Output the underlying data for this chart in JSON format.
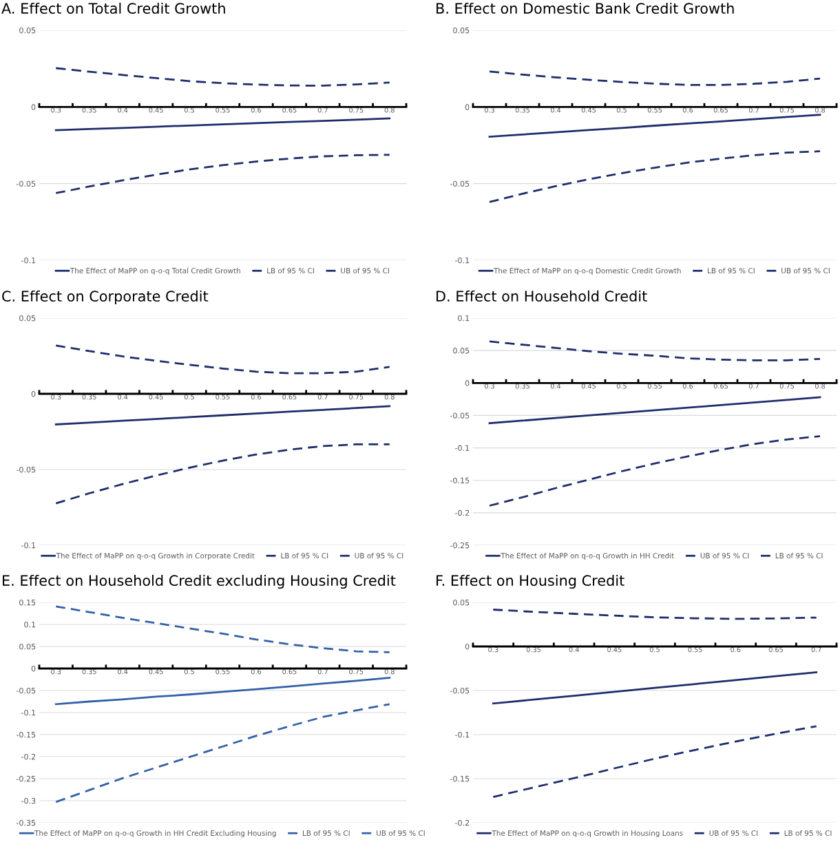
{
  "chart_data": [
    {
      "type": "line",
      "title": "A. Effect on Total Credit Growth",
      "categories": [
        "0.3",
        "0.35",
        "0.4",
        "0.45",
        "0.5",
        "0.55",
        "0.6",
        "0.65",
        "0.7",
        "0.75",
        "0.8"
      ],
      "ylim": [
        -0.1,
        0.05
      ],
      "yticks": [
        -0.1,
        -0.05,
        0,
        0.05
      ],
      "grid": "y",
      "legend": "bottom",
      "series": [
        {
          "name": "The Effect of MaPP on q-o-q Total Credit Growth",
          "color": "#1f2d6b",
          "line_style": "solid",
          "values": [
            -0.0152,
            -0.0144,
            -0.0137,
            -0.0129,
            -0.0121,
            -0.0114,
            -0.0106,
            -0.0098,
            -0.0091,
            -0.0083,
            -0.0075
          ]
        },
        {
          "name": "LB of 95 % CI",
          "color": "#1f2d6b",
          "line_style": "dashed",
          "values": [
            -0.0562,
            -0.0519,
            -0.0479,
            -0.0442,
            -0.0408,
            -0.038,
            -0.0356,
            -0.0337,
            -0.0322,
            -0.0315,
            -0.0312
          ]
        },
        {
          "name": "UB of 95 % CI",
          "color": "#1f2d6b",
          "line_style": "dashed",
          "values": [
            0.0253,
            0.023,
            0.0209,
            0.0188,
            0.0168,
            0.0155,
            0.0146,
            0.014,
            0.0139,
            0.0147,
            0.0159
          ]
        }
      ]
    },
    {
      "type": "line",
      "title": "B. Effect on Domestic Bank Credit Growth",
      "categories": [
        "0.3",
        "0.35",
        "0.4",
        "0.45",
        "0.5",
        "0.55",
        "0.6",
        "0.65",
        "0.7",
        "0.75",
        "0.8"
      ],
      "ylim": [
        -0.1,
        0.05
      ],
      "yticks": [
        -0.1,
        -0.05,
        0,
        0.05
      ],
      "grid": "y",
      "legend": "bottom",
      "series": [
        {
          "name": "The Effect of MaPP on q-o-q Domestic Credit Growth",
          "color": "#1f2d6b",
          "line_style": "solid",
          "values": [
            -0.0194,
            -0.018,
            -0.0165,
            -0.0151,
            -0.0137,
            -0.0122,
            -0.0108,
            -0.0094,
            -0.008,
            -0.0065,
            -0.0051
          ]
        },
        {
          "name": "LB of 95 % CI",
          "color": "#1f2d6b",
          "line_style": "dashed",
          "values": [
            -0.062,
            -0.0566,
            -0.0517,
            -0.0472,
            -0.0432,
            -0.0396,
            -0.0363,
            -0.0337,
            -0.0315,
            -0.0298,
            -0.0289
          ]
        },
        {
          "name": "UB of 95 % CI",
          "color": "#1f2d6b",
          "line_style": "dashed",
          "values": [
            0.0231,
            0.0211,
            0.0193,
            0.0177,
            0.0163,
            0.0152,
            0.0144,
            0.0143,
            0.0151,
            0.0164,
            0.0185
          ]
        }
      ]
    },
    {
      "type": "line",
      "title": "C. Effect on Corporate Credit",
      "categories": [
        "0.3",
        "0.35",
        "0.4",
        "0.45",
        "0.5",
        "0.55",
        "0.6",
        "0.65",
        "0.7",
        "0.75",
        "0.8"
      ],
      "ylim": [
        -0.1,
        0.05
      ],
      "yticks": [
        -0.1,
        -0.05,
        0,
        0.05
      ],
      "grid": "y",
      "legend": "bottom",
      "series": [
        {
          "name": "The Effect of MaPP on q-o-q Growth in Corporate Credit",
          "color": "#1f2d6b",
          "line_style": "solid",
          "values": [
            -0.0202,
            -0.019,
            -0.0178,
            -0.0166,
            -0.0154,
            -0.0142,
            -0.013,
            -0.0118,
            -0.0106,
            -0.0094,
            -0.0082
          ]
        },
        {
          "name": "LB of 95 % CI",
          "color": "#1f2d6b",
          "line_style": "dashed",
          "values": [
            -0.0723,
            -0.0657,
            -0.0596,
            -0.054,
            -0.0488,
            -0.0441,
            -0.0401,
            -0.0369,
            -0.0345,
            -0.0334,
            -0.0334
          ]
        },
        {
          "name": "UB of 95 % CI",
          "color": "#1f2d6b",
          "line_style": "dashed",
          "values": [
            0.0319,
            0.0282,
            0.0247,
            0.0218,
            0.0192,
            0.0167,
            0.0146,
            0.0136,
            0.0136,
            0.0146,
            0.0178
          ]
        }
      ]
    },
    {
      "type": "line",
      "title": "D. Effect on Household Credit",
      "categories": [
        "0.3",
        "0.35",
        "0.4",
        "0.45",
        "0.5",
        "0.55",
        "0.6",
        "0.65",
        "0.7",
        "0.75",
        "0.8"
      ],
      "ylim": [
        -0.25,
        0.1
      ],
      "yticks": [
        -0.25,
        -0.2,
        -0.15,
        -0.1,
        -0.05,
        0,
        0.05,
        0.1
      ],
      "grid": "y",
      "legend": "bottom",
      "series": [
        {
          "name": "The Effect of MaPP on q-o-q Growth in HH Credit",
          "color": "#1f2d6b",
          "line_style": "solid",
          "values": [
            -0.062,
            -0.058,
            -0.054,
            -0.05,
            -0.046,
            -0.042,
            -0.038,
            -0.034,
            -0.03,
            -0.026,
            -0.022
          ]
        },
        {
          "name": "UB of 95 % CI",
          "color": "#1f2d6b",
          "line_style": "dashed",
          "values": [
            0.064,
            0.059,
            0.054,
            0.049,
            0.045,
            0.042,
            0.038,
            0.036,
            0.035,
            0.035,
            0.037
          ]
        },
        {
          "name": "LB of 95 % CI",
          "color": "#1f2d6b",
          "line_style": "dashed",
          "values": [
            -0.189,
            -0.176,
            -0.162,
            -0.149,
            -0.136,
            -0.124,
            -0.113,
            -0.103,
            -0.094,
            -0.087,
            -0.082
          ]
        }
      ]
    },
    {
      "type": "line",
      "title": "E. Effect on Household Credit excluding Housing Credit",
      "categories": [
        "0.3",
        "0.35",
        "0.4",
        "0.45",
        "0.5",
        "0.55",
        "0.6",
        "0.65",
        "0.7",
        "0.75",
        "0.8"
      ],
      "ylim": [
        -0.35,
        0.15
      ],
      "yticks": [
        -0.35,
        -0.3,
        -0.25,
        -0.2,
        -0.15,
        -0.1,
        -0.05,
        0,
        0.05,
        0.1,
        0.15
      ],
      "grid": "y",
      "legend": "bottom",
      "series": [
        {
          "name": "The Effect of MaPP on q-o-q Growth in HH Credit Excluding Housing",
          "color": "#3361a8",
          "line_style": "solid",
          "values": [
            -0.081,
            -0.075,
            -0.07,
            -0.064,
            -0.059,
            -0.053,
            -0.047,
            -0.041,
            -0.034,
            -0.028,
            -0.021
          ]
        },
        {
          "name": "LB of 95 % CI",
          "color": "#3361a8",
          "line_style": "dashed",
          "values": [
            -0.303,
            -0.276,
            -0.249,
            -0.225,
            -0.201,
            -0.177,
            -0.153,
            -0.131,
            -0.11,
            -0.095,
            -0.081
          ]
        },
        {
          "name": "UB of 95 % CI",
          "color": "#3361a8",
          "line_style": "dashed",
          "values": [
            0.141,
            0.128,
            0.115,
            0.103,
            0.091,
            0.079,
            0.066,
            0.055,
            0.046,
            0.039,
            0.037
          ]
        }
      ]
    },
    {
      "type": "line",
      "title": "F. Effect on Housing Credit",
      "categories": [
        "0.3",
        "0.35",
        "0.4",
        "0.45",
        "0.5",
        "0.55",
        "0.6",
        "0.65",
        "0.7"
      ],
      "ylim": [
        -0.2,
        0.05
      ],
      "yticks": [
        -0.2,
        -0.15,
        -0.1,
        -0.05,
        0,
        0.05
      ],
      "grid": "y",
      "legend": "bottom",
      "series": [
        {
          "name": "The Effect of MaPP on q-o-q Growth in Housing Loans",
          "color": "#1f2d6b",
          "line_style": "solid",
          "values": [
            -0.0647,
            -0.0603,
            -0.0559,
            -0.0514,
            -0.047,
            -0.0426,
            -0.0381,
            -0.0337,
            -0.0293
          ]
        },
        {
          "name": "UB of 95 % CI",
          "color": "#1f2d6b",
          "line_style": "dashed",
          "values": [
            0.0418,
            0.0393,
            0.0371,
            0.035,
            0.0331,
            0.032,
            0.0313,
            0.0318,
            0.0328
          ]
        },
        {
          "name": "LB of 95 % CI",
          "color": "#1f2d6b",
          "line_style": "dashed",
          "values": [
            -0.1708,
            -0.16,
            -0.1494,
            -0.1383,
            -0.1273,
            -0.1174,
            -0.1079,
            -0.099,
            -0.0905
          ]
        }
      ]
    }
  ]
}
